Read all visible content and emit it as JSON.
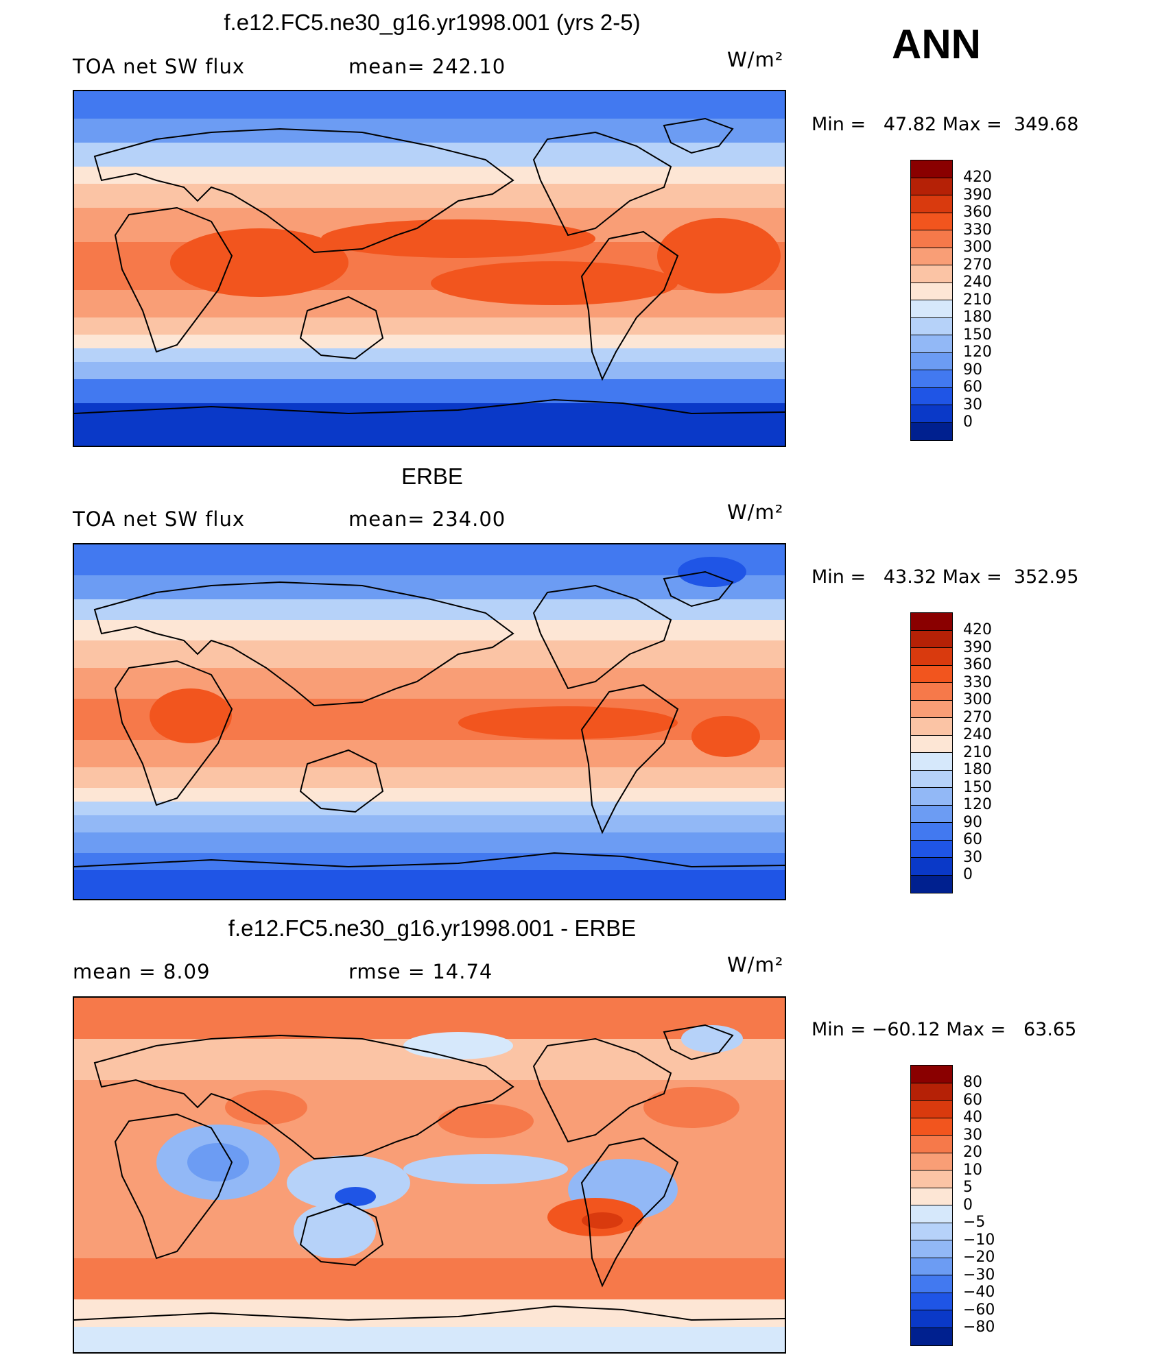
{
  "season": "ANN",
  "panels": [
    {
      "title": "f.e12.FC5.ne30_g16.yr1998.001 (yrs 2-5)",
      "left_label": "TOA net SW flux",
      "center_label": "mean= 242.10",
      "units": "W/m²",
      "minmax": "Min =   47.82 Max =  349.68"
    },
    {
      "title": "ERBE",
      "left_label": "TOA net SW flux",
      "center_label": "mean= 234.00",
      "units": "W/m²",
      "minmax": "Min =   43.32 Max =  352.95"
    },
    {
      "title": "f.e12.FC5.ne30_g16.yr1998.001 - ERBE",
      "left_label": "mean =     8.09",
      "center_label": "rmse =    14.74",
      "units": "W/m²",
      "minmax": "Min = −60.12 Max =   63.65"
    }
  ],
  "colorbar_flux": {
    "labels": [
      "420",
      "390",
      "360",
      "330",
      "300",
      "270",
      "240",
      "210",
      "180",
      "150",
      "120",
      "90",
      "60",
      "30",
      "0"
    ],
    "colors": [
      "#8a0000",
      "#b52106",
      "#d93a0e",
      "#f2551e",
      "#f6794a",
      "#f99e76",
      "#fbc4a5",
      "#fde6d5",
      "#d6e8fb",
      "#b6d2f9",
      "#92b8f6",
      "#6c9cf3",
      "#4279f0",
      "#1f55e6",
      "#0a39c8",
      "#00208f"
    ]
  },
  "colorbar_diff": {
    "labels": [
      "80",
      "60",
      "40",
      "30",
      "20",
      "10",
      "5",
      "0",
      "−5",
      "−10",
      "−20",
      "−30",
      "−40",
      "−60",
      "−80"
    ],
    "colors": [
      "#8a0000",
      "#b52106",
      "#d93a0e",
      "#f2551e",
      "#f6794a",
      "#f99e76",
      "#fbc4a5",
      "#fde6d5",
      "#d6e8fb",
      "#b6d2f9",
      "#92b8f6",
      "#6c9cf3",
      "#4279f0",
      "#1f55e6",
      "#0a39c8",
      "#00208f"
    ]
  },
  "chart_data": [
    {
      "type": "heatmap",
      "title": "f.e12.FC5.ne30_g16.yr1998.001 (yrs 2-5)",
      "variable": "TOA net SW flux",
      "units": "W/m²",
      "mean": 242.1,
      "min": 47.82,
      "max": 349.68,
      "contour_levels": [
        0,
        30,
        60,
        90,
        120,
        150,
        180,
        210,
        240,
        270,
        300,
        330,
        360,
        390,
        420
      ],
      "zonal_profile_lat_values": {
        "lat": [
          90,
          75,
          60,
          45,
          30,
          15,
          0,
          -15,
          -30,
          -45,
          -60,
          -75,
          -90
        ],
        "approx_value": [
          60,
          90,
          150,
          210,
          285,
          320,
          315,
          305,
          280,
          200,
          120,
          60,
          45
        ]
      }
    },
    {
      "type": "heatmap",
      "title": "ERBE",
      "variable": "TOA net SW flux",
      "units": "W/m²",
      "mean": 234.0,
      "min": 43.32,
      "max": 352.95,
      "contour_levels": [
        0,
        30,
        60,
        90,
        120,
        150,
        180,
        210,
        240,
        270,
        300,
        330,
        360,
        390,
        420
      ],
      "zonal_profile_lat_values": {
        "lat": [
          90,
          75,
          60,
          45,
          30,
          15,
          0,
          -15,
          -30,
          -45,
          -60,
          -75,
          -90
        ],
        "approx_value": [
          55,
          85,
          145,
          200,
          270,
          310,
          300,
          300,
          270,
          190,
          110,
          55,
          40
        ]
      }
    },
    {
      "type": "heatmap",
      "title": "f.e12.FC5.ne30_g16.yr1998.001 - ERBE",
      "units": "W/m²",
      "mean": 8.09,
      "rmse": 14.74,
      "min": -60.12,
      "max": 63.65,
      "contour_levels": [
        -80,
        -60,
        -40,
        -30,
        -20,
        -10,
        -5,
        0,
        5,
        10,
        20,
        30,
        40,
        60,
        80
      ]
    }
  ]
}
